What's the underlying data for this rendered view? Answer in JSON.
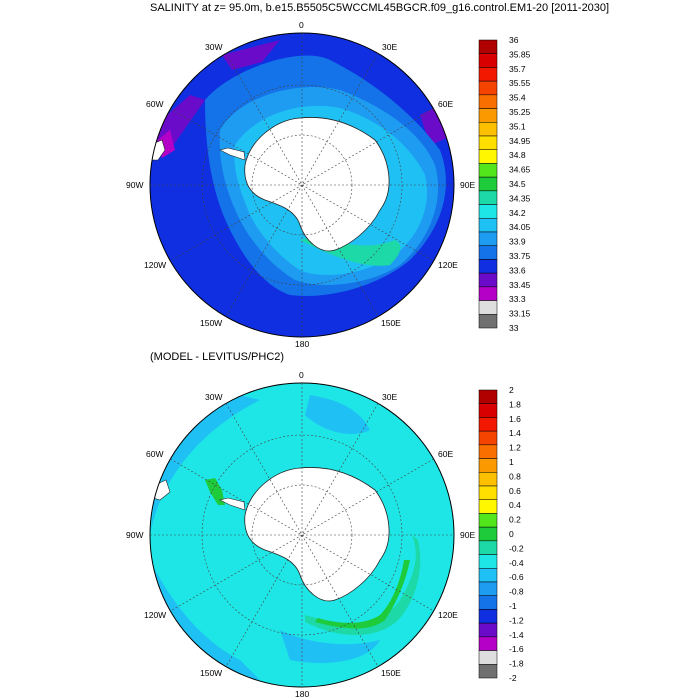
{
  "title": "SALINITY at z=  95.0m, b.e15.B5505C5WCCML45BGCR.f09_g16.control.EM1-20 [2011-2030]",
  "subtitle": "(MODEL - LEVITUS/PHC2)",
  "top_map": {
    "lon_labels": [
      "0",
      "30E",
      "60E",
      "90E",
      "120E",
      "150E",
      "180",
      "150W",
      "120W",
      "90W",
      "60W",
      "30W"
    ],
    "colorbar": {
      "labels": [
        "36",
        "35.85",
        "35.7",
        "35.55",
        "35.4",
        "35.25",
        "35.1",
        "34.95",
        "34.8",
        "34.65",
        "34.5",
        "34.35",
        "34.2",
        "34.05",
        "33.9",
        "33.75",
        "33.6",
        "33.45",
        "33.3",
        "33.15",
        "33"
      ],
      "colors": [
        "#b10000",
        "#d80000",
        "#f21800",
        "#f54400",
        "#fa7000",
        "#fb9a00",
        "#fcc000",
        "#fedf00",
        "#fff700",
        "#53e61b",
        "#1ecb3a",
        "#1cd9a7",
        "#1ee6e6",
        "#1fc1f4",
        "#1e9cf2",
        "#1473e8",
        "#0f2fe0",
        "#6a0bc9",
        "#b500c8",
        "#dedede",
        "#707070"
      ]
    }
  },
  "bottom_map": {
    "lon_labels": [
      "0",
      "30E",
      "60E",
      "90E",
      "120E",
      "150E",
      "180",
      "150W",
      "120W",
      "90W",
      "60W",
      "30W"
    ],
    "colorbar": {
      "labels": [
        "2",
        "1.8",
        "1.6",
        "1.4",
        "1.2",
        "1",
        "0.8",
        "0.6",
        "0.4",
        "0.2",
        "0",
        "-0.2",
        "-0.4",
        "-0.6",
        "-0.8",
        "-1",
        "-1.2",
        "-1.4",
        "-1.6",
        "-1.8",
        "-2"
      ],
      "colors": [
        "#b10000",
        "#d80000",
        "#f21800",
        "#f54400",
        "#fa7000",
        "#fb9a00",
        "#fcc000",
        "#fedf00",
        "#fff700",
        "#53e61b",
        "#1ecb3a",
        "#1cd9a7",
        "#1ee6e6",
        "#1fc1f4",
        "#1e9cf2",
        "#1473e8",
        "#0f2fe0",
        "#6a0bc9",
        "#b500c8",
        "#dedede",
        "#707070"
      ]
    }
  }
}
